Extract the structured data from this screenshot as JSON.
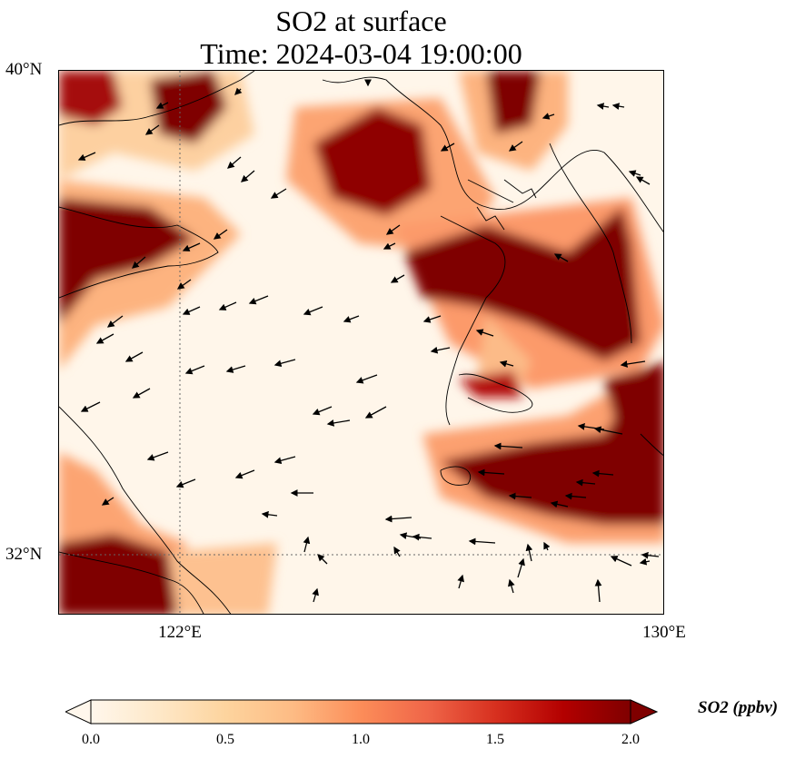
{
  "title": {
    "line1": "SO2 at surface",
    "line2": "Time: 2024-03-04 19:00:00"
  },
  "axes": {
    "lat_ticks": [
      {
        "value": 40,
        "label": "40°N"
      },
      {
        "value": 32,
        "label": "32°N"
      }
    ],
    "lon_ticks": [
      {
        "value": 122,
        "label": "122°E"
      },
      {
        "value": 130,
        "label": "130°E"
      }
    ],
    "lon_range": [
      120,
      130
    ],
    "lat_range": [
      31,
      40
    ],
    "gridlines": "dotted"
  },
  "colorbar": {
    "label": "SO2 (ppbv)",
    "colormap": "OrRd",
    "range": [
      0.0,
      2.0
    ],
    "extend": "both",
    "ticks": [
      "0.0",
      "0.5",
      "1.0",
      "1.5",
      "2.0"
    ],
    "colors": [
      "#fff7ec",
      "#fee8c8",
      "#fdd49e",
      "#fdbb84",
      "#fc8d59",
      "#ef6548",
      "#d7301f",
      "#b30000",
      "#7f0000"
    ]
  },
  "chart_data": {
    "type": "heatmap",
    "variable": "SO2 (ppbv)",
    "x_range_lon": [
      120,
      130
    ],
    "y_range_lat": [
      31,
      40
    ],
    "value_range": [
      0.0,
      2.0
    ]
  }
}
